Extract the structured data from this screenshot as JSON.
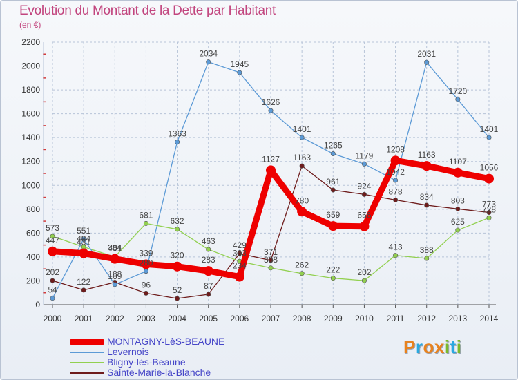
{
  "header": {
    "title": "Evolution du Montant de la Dette par Habitant",
    "unit": "(en €)"
  },
  "logo": {
    "text": "Proxiti",
    "colors": [
      "#e8821e",
      "#29a9e0",
      "#e8821e",
      "#e8821e",
      "#7cb92b",
      "#29a9e0",
      "#7cb92b"
    ]
  },
  "colors": {
    "grid": "#b7c4d8",
    "axis_text": "#333333",
    "title": "#c2457e",
    "legend_text": "#4646c8"
  },
  "chart_data": {
    "type": "line",
    "x": [
      "2000",
      "2001",
      "2002",
      "2003",
      "2004",
      "2005",
      "2006",
      "2007",
      "2008",
      "2009",
      "2010",
      "2011",
      "2012",
      "2013",
      "2014"
    ],
    "ylim": [
      0,
      2200
    ],
    "yticks": [
      0,
      200,
      400,
      600,
      800,
      1000,
      1200,
      1400,
      1600,
      1800,
      2000,
      2200
    ],
    "grid": true,
    "legend_position": "bottom-left",
    "series": [
      {
        "name": "MONTAGNY-LèS-BEAUNE",
        "color": "#ee0000",
        "values": [
          447,
          431,
          384,
          339,
          320,
          283,
          234,
          1127,
          780,
          659,
          656,
          1208,
          1163,
          1107,
          1056
        ]
      },
      {
        "name": "Levernois",
        "color": "#5c9ad6",
        "values": [
          54,
          551,
          169,
          280,
          1363,
          2034,
          1945,
          1626,
          1401,
          1265,
          1179,
          1042,
          2031,
          1720,
          1401
        ]
      },
      {
        "name": "Bligny-lès-Beaune",
        "color": "#92d050",
        "values": [
          573,
          484,
          401,
          681,
          632,
          463,
          363,
          308,
          262,
          222,
          202,
          413,
          388,
          625,
          728
        ]
      },
      {
        "name": "Sainte-Marie-la-Blanche",
        "color": "#6e1c1c",
        "values": [
          202,
          122,
          188,
          96,
          52,
          87,
          429,
          371,
          1163,
          961,
          924,
          878,
          834,
          803,
          773
        ]
      }
    ]
  }
}
